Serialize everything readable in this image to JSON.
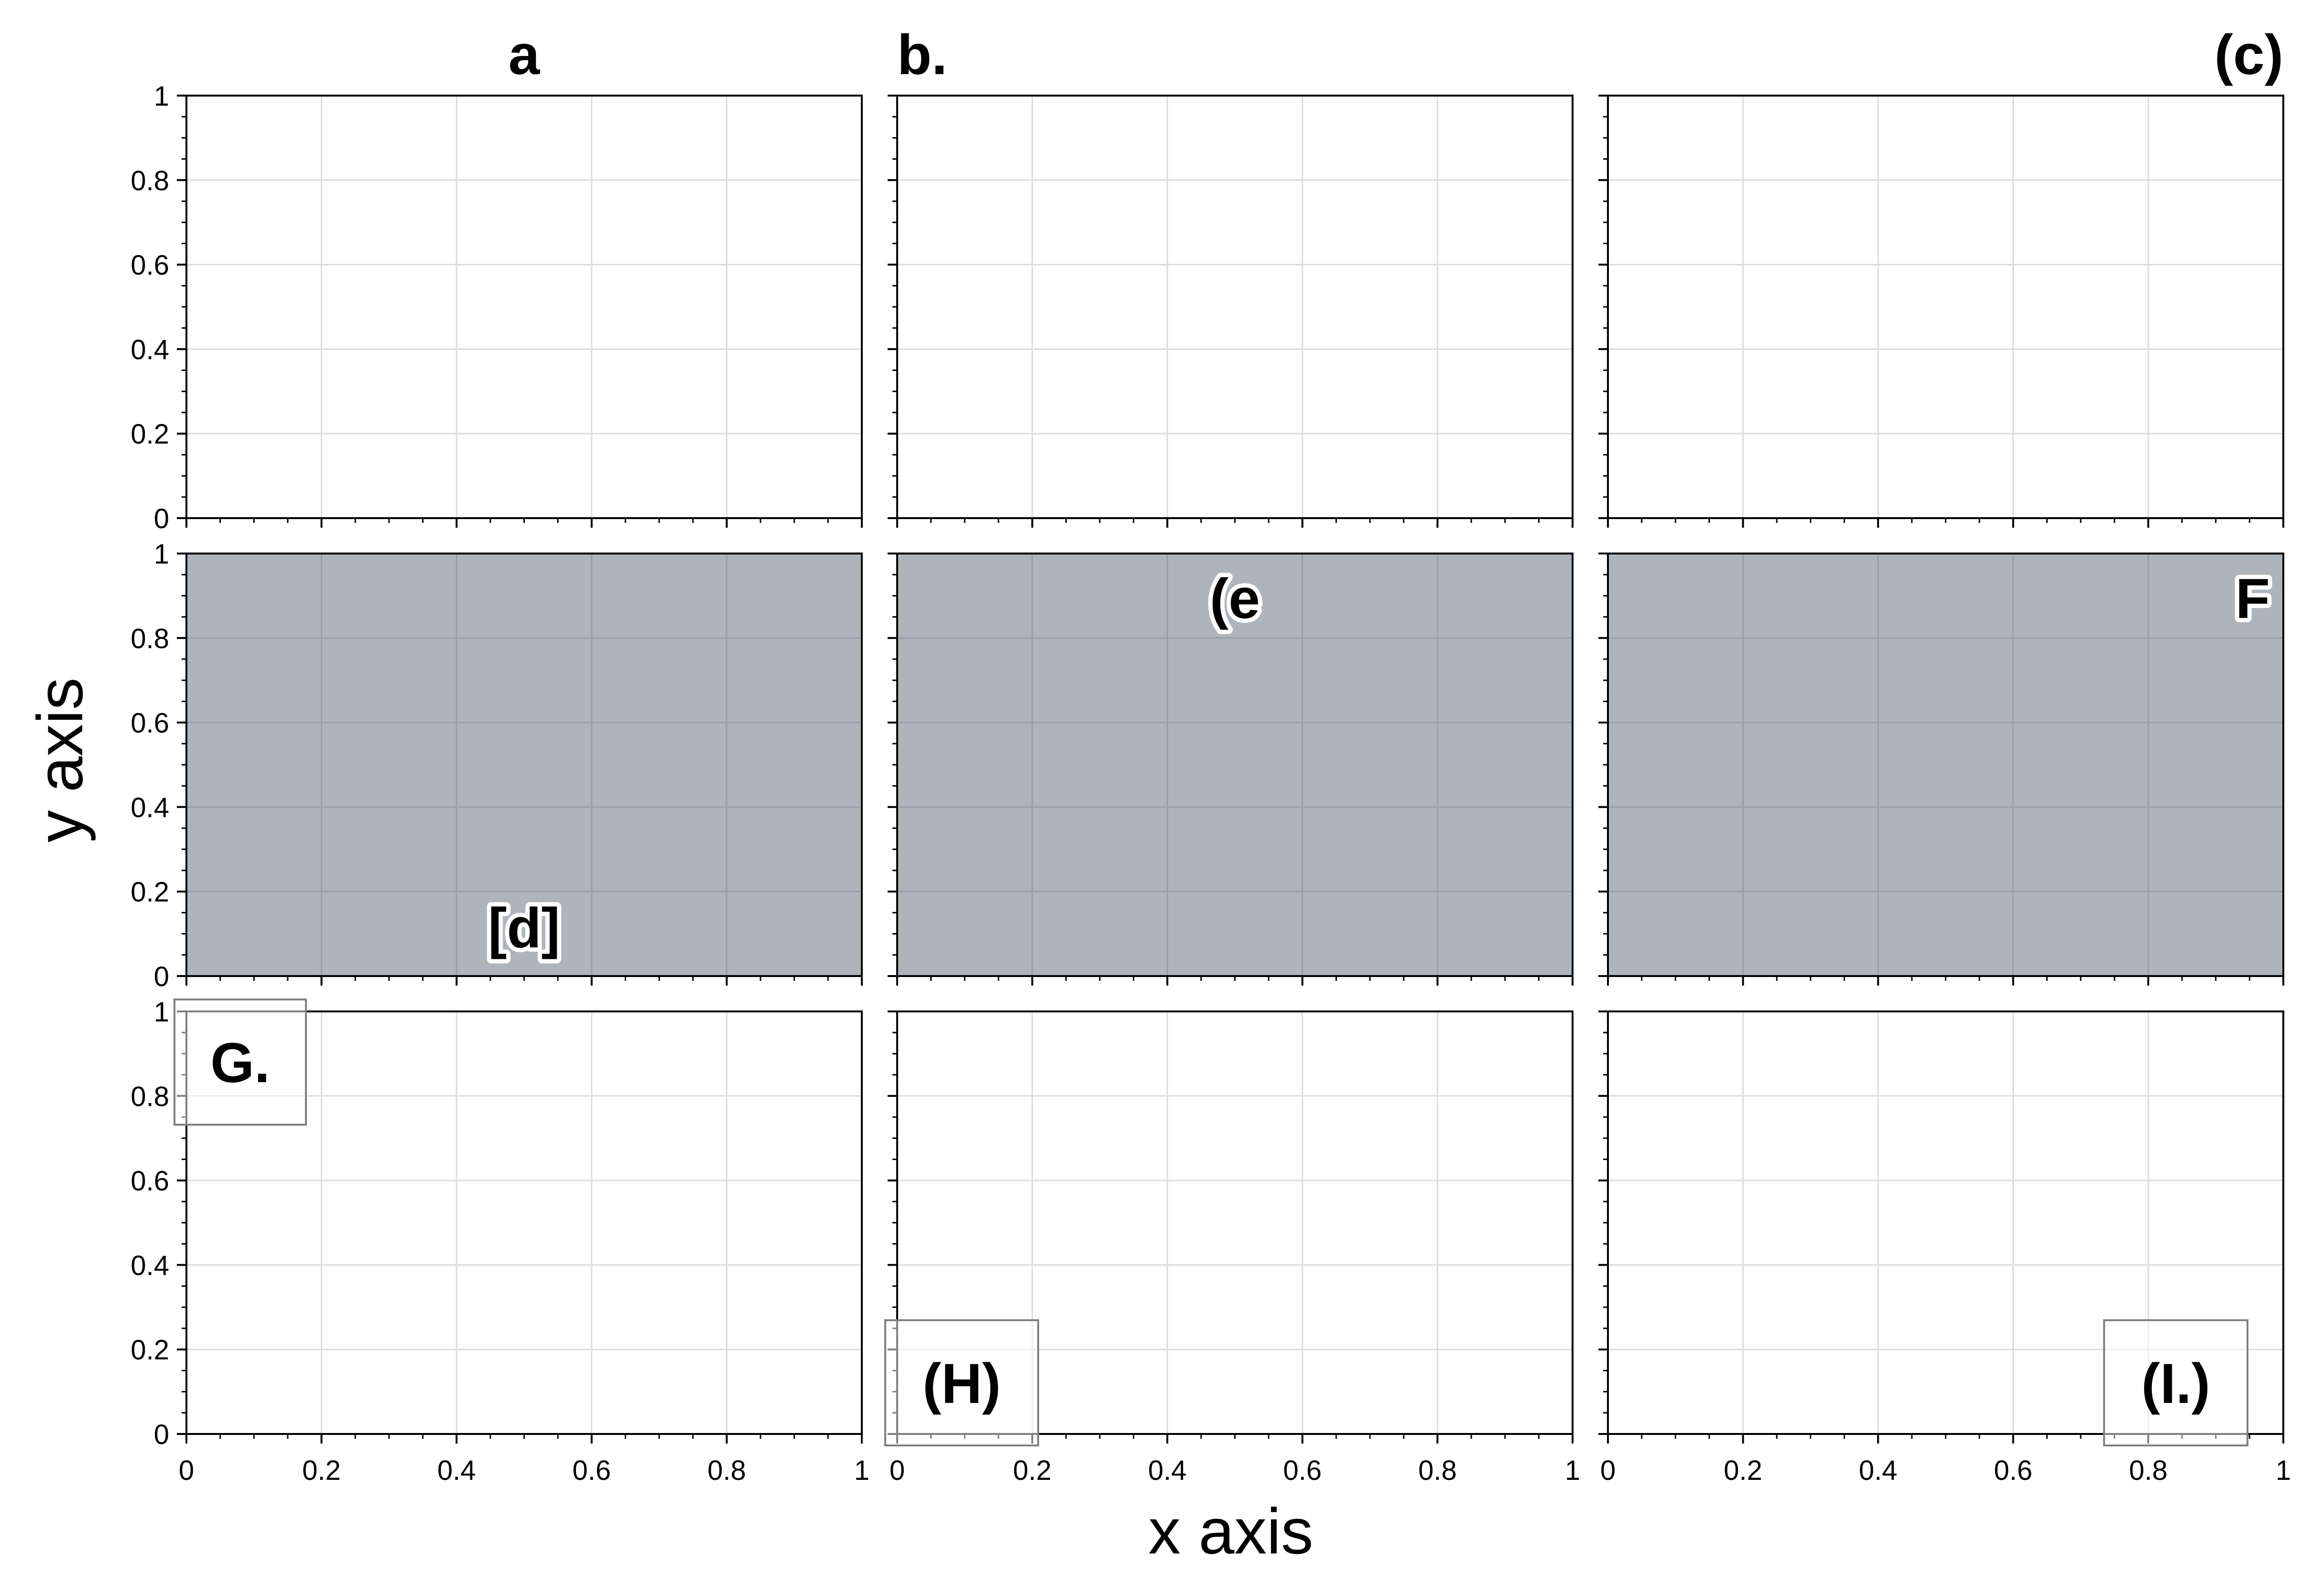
{
  "figure": {
    "xlabel": "x axis",
    "ylabel": "y axis",
    "colors": {
      "background": "#ffffff",
      "shaded_panel": "#aeb4bc",
      "grid_on_white": "#dcdcdc",
      "grid_on_shaded": "#979ea8",
      "frame": "#000000",
      "label_box_edge": "#808080"
    }
  },
  "chart_data": [
    {
      "type": "line",
      "panel": "a",
      "label": "a",
      "label_style": "title-center",
      "shaded": false,
      "xlim": [
        0,
        1
      ],
      "ylim": [
        0,
        1
      ],
      "grid": true,
      "show_ytick_labels": true,
      "show_xtick_labels": false,
      "series": []
    },
    {
      "type": "line",
      "panel": "b",
      "label": "b.",
      "label_style": "title-left",
      "shaded": false,
      "xlim": [
        0,
        1
      ],
      "ylim": [
        0,
        1
      ],
      "grid": true,
      "show_ytick_labels": false,
      "show_xtick_labels": false,
      "series": []
    },
    {
      "type": "line",
      "panel": "c",
      "label": "(c)",
      "label_style": "title-right",
      "shaded": false,
      "xlim": [
        0,
        1
      ],
      "ylim": [
        0,
        1
      ],
      "grid": true,
      "show_ytick_labels": false,
      "show_xtick_labels": false,
      "series": []
    },
    {
      "type": "line",
      "panel": "d",
      "label": "[d]",
      "label_style": "inset-bottom-center",
      "shaded": true,
      "xlim": [
        0,
        1
      ],
      "ylim": [
        0,
        1
      ],
      "grid": true,
      "show_ytick_labels": true,
      "show_xtick_labels": false,
      "series": []
    },
    {
      "type": "line",
      "panel": "e",
      "label": "(e",
      "label_style": "inset-top-center",
      "shaded": true,
      "xlim": [
        0,
        1
      ],
      "ylim": [
        0,
        1
      ],
      "grid": true,
      "show_ytick_labels": false,
      "show_xtick_labels": false,
      "series": []
    },
    {
      "type": "line",
      "panel": "f",
      "label": "F",
      "label_style": "inset-top-right",
      "shaded": true,
      "xlim": [
        0,
        1
      ],
      "ylim": [
        0,
        1
      ],
      "grid": true,
      "show_ytick_labels": false,
      "show_xtick_labels": false,
      "series": []
    },
    {
      "type": "line",
      "panel": "g",
      "label": "G.",
      "label_style": "box-top-left",
      "shaded": false,
      "xlim": [
        0,
        1
      ],
      "ylim": [
        0,
        1
      ],
      "grid": true,
      "show_ytick_labels": true,
      "show_xtick_labels": true,
      "series": []
    },
    {
      "type": "line",
      "panel": "h",
      "label": "(H)",
      "label_style": "box-bottom-left",
      "shaded": false,
      "xlim": [
        0,
        1
      ],
      "ylim": [
        0,
        1
      ],
      "grid": true,
      "show_ytick_labels": false,
      "show_xtick_labels": true,
      "series": []
    },
    {
      "type": "line",
      "panel": "i",
      "label": "(I.)",
      "label_style": "box-bottom-right",
      "shaded": false,
      "xlim": [
        0,
        1
      ],
      "ylim": [
        0,
        1
      ],
      "grid": true,
      "show_ytick_labels": false,
      "show_xtick_labels": true,
      "series": []
    }
  ],
  "ticks": {
    "major": [
      0,
      0.2,
      0.4,
      0.6,
      0.8,
      1
    ],
    "major_labels": [
      "0",
      "0.2",
      "0.4",
      "0.6",
      "0.8",
      "1"
    ],
    "minor": [
      0.05,
      0.1,
      0.15,
      0.25,
      0.3,
      0.35,
      0.45,
      0.5,
      0.55,
      0.65,
      0.7,
      0.75,
      0.85,
      0.9,
      0.95
    ]
  }
}
